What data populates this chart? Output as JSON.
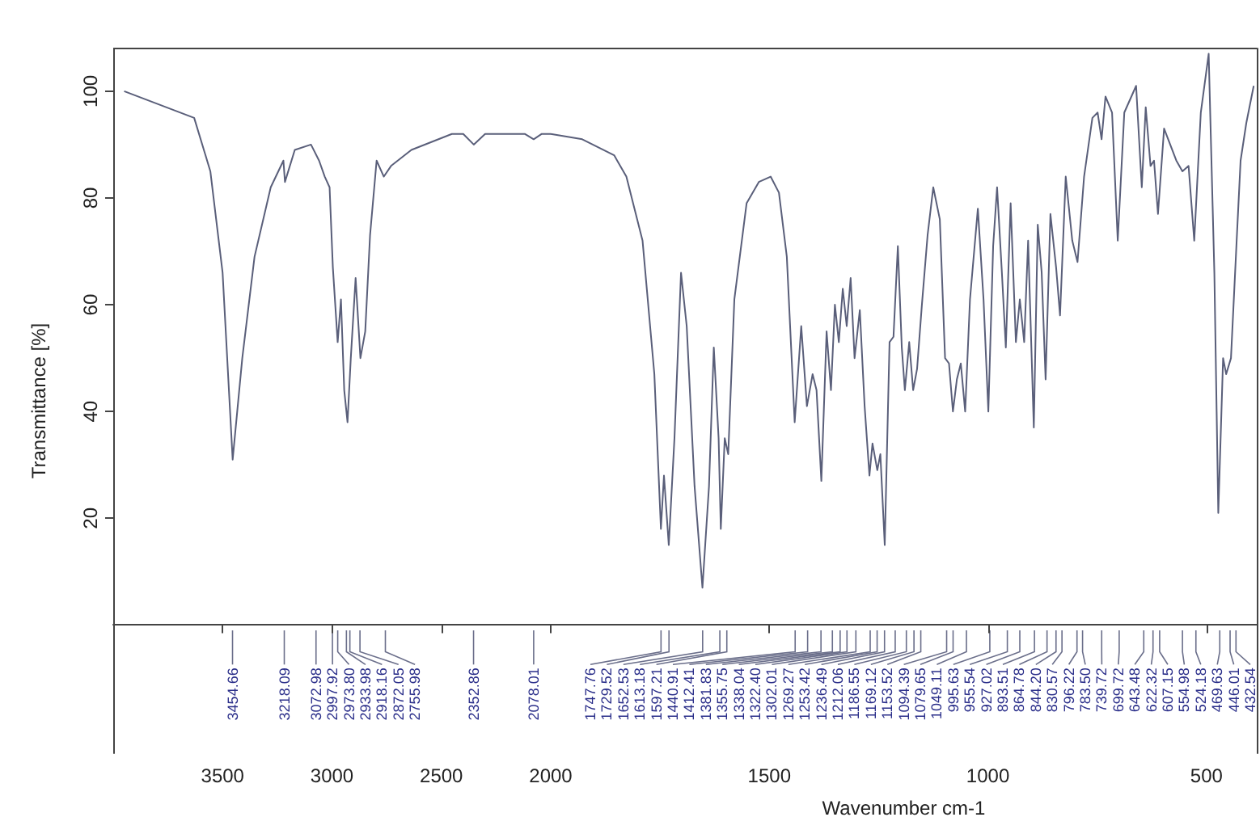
{
  "chart_data": [
    {
      "type": "line",
      "ylabel": "Transmittance [%]",
      "xlim": [
        4000,
        2000
      ],
      "xticks": [
        3500,
        3000,
        2500
      ],
      "ylim": [
        -24,
        108
      ],
      "yticks": [
        20,
        40,
        60,
        80,
        100
      ],
      "x": [
        3950,
        3630,
        3556,
        3500,
        3454,
        3410,
        3354,
        3280,
        3222,
        3215,
        3170,
        3096,
        3059,
        3033,
        3011,
        2996,
        2974,
        2959,
        2944,
        2929,
        2914,
        2892,
        2870,
        2848,
        2826,
        2796,
        2763,
        2730,
        2637,
        2452,
        2400,
        2352,
        2300,
        2119,
        2078,
        2041,
        2000
      ],
      "series": [
        {
          "color": "#5a5f7a",
          "values": [
            100,
            95,
            85,
            66,
            31,
            50,
            69,
            82,
            87,
            83,
            89,
            90,
            87,
            84,
            82,
            67,
            53,
            61,
            44,
            38,
            50,
            65,
            50,
            55,
            73,
            87,
            84,
            86,
            89,
            92,
            92,
            90,
            92,
            92,
            91,
            92,
            92
          ]
        }
      ],
      "annotations": [
        {
          "text": "3454.66",
          "x": 3454.66
        },
        {
          "text": "3218.09",
          "x": 3218.09
        },
        {
          "text": "3072.98",
          "x": 3072.98
        },
        {
          "text": "2997.92",
          "x": 2997.92
        },
        {
          "text": "2973.80",
          "x": 2973.8
        },
        {
          "text": "2933.98",
          "x": 2933.98
        },
        {
          "text": "2918.16",
          "x": 2918.16
        },
        {
          "text": "2872.05",
          "x": 2872.05
        },
        {
          "text": "2755.98",
          "x": 2755.98
        },
        {
          "text": "2352.86",
          "x": 2352.86
        },
        {
          "text": "2078.01",
          "x": 2078.01
        }
      ]
    },
    {
      "type": "line",
      "xlabel": "Wavenumber cm-1",
      "tick_labels": "x",
      "xlim": [
        2000,
        385
      ],
      "xticks": [
        2000,
        1500,
        1000,
        500
      ],
      "ylim": [
        -24,
        108
      ],
      "yticks": [
        20,
        40,
        60,
        80,
        100
      ],
      "x": [
        2000,
        1928,
        1855,
        1827,
        1790,
        1763,
        1748,
        1741,
        1730,
        1717,
        1702,
        1689,
        1671,
        1653,
        1638,
        1627,
        1616,
        1611,
        1602,
        1594,
        1580,
        1552,
        1524,
        1497,
        1478,
        1460,
        1442,
        1427,
        1414,
        1401,
        1392,
        1381,
        1369,
        1359,
        1350,
        1341,
        1332,
        1323,
        1314,
        1305,
        1293,
        1282,
        1271,
        1264,
        1253,
        1246,
        1236,
        1225,
        1216,
        1206,
        1197,
        1190,
        1180,
        1171,
        1162,
        1151,
        1138,
        1125,
        1110,
        1098,
        1089,
        1080,
        1071,
        1062,
        1052,
        1041,
        1023,
        1010,
        999,
        988,
        979,
        968,
        959,
        948,
        936,
        927,
        917,
        908,
        895,
        886,
        877,
        868,
        857,
        844,
        835,
        822,
        807,
        795,
        780,
        761,
        749,
        740,
        731,
        716,
        703,
        688,
        661,
        648,
        639,
        628,
        620,
        611,
        597,
        569,
        555,
        541,
        528,
        513,
        495,
        482,
        473,
        462,
        455,
        444,
        431,
        422,
        409,
        392
      ],
      "series": [
        {
          "color": "#5a5f7a",
          "values": [
            92,
            91,
            88,
            84,
            72,
            47,
            18,
            28,
            15,
            35,
            66,
            56,
            26,
            7,
            26,
            52,
            35,
            18,
            35,
            32,
            61,
            79,
            83,
            84,
            81,
            69,
            38,
            56,
            41,
            47,
            44,
            27,
            55,
            44,
            60,
            53,
            63,
            56,
            65,
            50,
            59,
            41,
            28,
            34,
            29,
            32,
            15,
            53,
            54,
            71,
            52,
            44,
            53,
            44,
            48,
            60,
            73,
            82,
            76,
            50,
            49,
            40,
            46,
            49,
            40,
            61,
            78,
            61,
            40,
            71,
            82,
            66,
            52,
            79,
            53,
            61,
            53,
            72,
            37,
            75,
            66,
            46,
            77,
            67,
            58,
            84,
            72,
            68,
            84,
            95,
            96,
            91,
            99,
            96,
            72,
            96,
            101,
            82,
            97,
            86,
            87,
            77,
            93,
            87,
            85,
            86,
            72,
            96,
            107,
            66,
            21,
            50,
            47,
            50,
            72,
            87,
            94,
            101
          ]
        }
      ],
      "annotations": [
        {
          "text": "1747.76",
          "x": 1747.76
        },
        {
          "text": "1729.52",
          "x": 1729.52
        },
        {
          "text": "1652.53",
          "x": 1652.53
        },
        {
          "text": "1613.18",
          "x": 1613.18
        },
        {
          "text": "1597.21",
          "x": 1597.21
        },
        {
          "text": "1440.91",
          "x": 1440.91
        },
        {
          "text": "1412.41",
          "x": 1412.41
        },
        {
          "text": "1381.83",
          "x": 1381.83
        },
        {
          "text": "1355.75",
          "x": 1355.75
        },
        {
          "text": "1338.04",
          "x": 1338.04
        },
        {
          "text": "1322.40",
          "x": 1322.4
        },
        {
          "text": "1302.01",
          "x": 1302.01
        },
        {
          "text": "1269.27",
          "x": 1269.27
        },
        {
          "text": "1253.42",
          "x": 1253.42
        },
        {
          "text": "1236.49",
          "x": 1236.49
        },
        {
          "text": "1212.06",
          "x": 1212.06
        },
        {
          "text": "1186.55",
          "x": 1186.55
        },
        {
          "text": "1169.12",
          "x": 1169.12
        },
        {
          "text": "1153.52",
          "x": 1153.52
        },
        {
          "text": "1094.39",
          "x": 1094.39
        },
        {
          "text": "1079.65",
          "x": 1079.65
        },
        {
          "text": "1049.11",
          "x": 1049.11
        },
        {
          "text": "995.63",
          "x": 995.63
        },
        {
          "text": "955.54",
          "x": 955.54
        },
        {
          "text": "927.02",
          "x": 927.02
        },
        {
          "text": "893.51",
          "x": 893.51
        },
        {
          "text": "864.78",
          "x": 864.78
        },
        {
          "text": "844.20",
          "x": 844.2
        },
        {
          "text": "830.57",
          "x": 830.57
        },
        {
          "text": "796.22",
          "x": 796.22
        },
        {
          "text": "783.50",
          "x": 783.5
        },
        {
          "text": "739.72",
          "x": 739.72
        },
        {
          "text": "699.72",
          "x": 699.72
        },
        {
          "text": "643.48",
          "x": 643.48
        },
        {
          "text": "622.32",
          "x": 622.32
        },
        {
          "text": "607.15",
          "x": 607.15
        },
        {
          "text": "554.98",
          "x": 554.98
        },
        {
          "text": "524.18",
          "x": 524.18
        },
        {
          "text": "469.63",
          "x": 469.63
        },
        {
          "text": "446.01",
          "x": 446.01
        },
        {
          "text": "432.54",
          "x": 432.54
        }
      ]
    }
  ]
}
